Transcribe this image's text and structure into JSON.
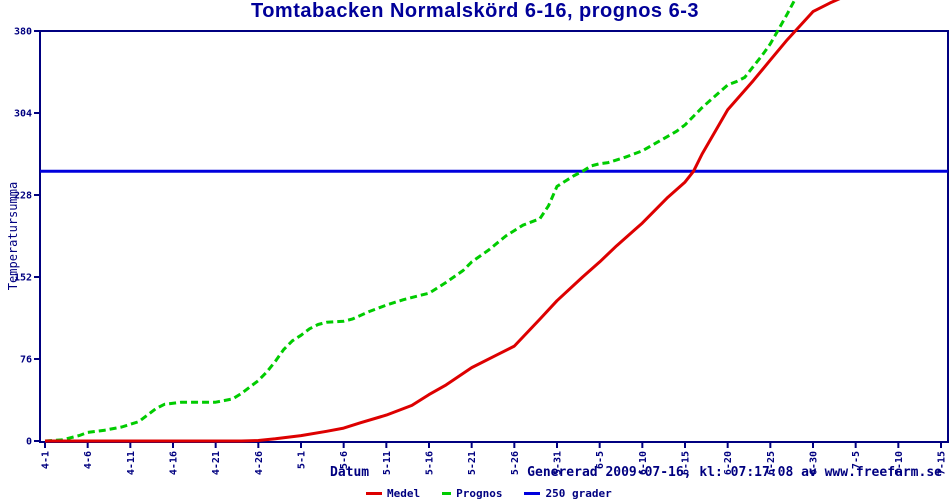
{
  "title": "Tomtabacken Normalskörd 6-16, prognos 6-3",
  "footer": {
    "generated": "Genererad 2009-07-16, kl: 07:17:08 av www.freefarm.se"
  },
  "axes": {
    "x_label": "Datum",
    "y_label": "Temperatursumma"
  },
  "legend": {
    "items": [
      {
        "label": "Medel",
        "color": "#dd0000",
        "swatch_w": 16
      },
      {
        "label": "Prognos",
        "color": "#00cc00",
        "swatch_w": 9
      },
      {
        "label": "250 grader",
        "color": "#0000dd",
        "swatch_w": 16
      }
    ]
  },
  "colors": {
    "text_navy": "#000080",
    "medel_red": "#dd0000",
    "prognos_green": "#00cc00",
    "ref_blue": "#0000dd"
  },
  "chart_data": {
    "type": "line",
    "title": "Tomtabacken Normalskörd 6-16, prognos 6-3",
    "xlabel": "Datum",
    "ylabel": "Temperatursumma",
    "ylim": [
      0,
      380
    ],
    "y_ticks": [
      0,
      76,
      152,
      228,
      304,
      380
    ],
    "x_tick_labels": [
      "4-1",
      "4-6",
      "4-11",
      "4-16",
      "4-21",
      "4-26",
      "5-1",
      "5-6",
      "5-11",
      "5-16",
      "5-21",
      "5-26",
      "5-31",
      "6-5",
      "6-10",
      "6-15",
      "6-20",
      "6-25",
      "6-30",
      "7-5",
      "7-10",
      "7-15"
    ],
    "x_tick_days": [
      0,
      5,
      10,
      15,
      20,
      25,
      30,
      35,
      40,
      45,
      50,
      55,
      60,
      65,
      70,
      75,
      80,
      85,
      90,
      95,
      100,
      105
    ],
    "x_unit": "month-day, one tick every 5 days from 4-1 to 7-15",
    "grid": false,
    "legend_position": "bottom-center",
    "ref_line": {
      "name": "250 grader",
      "value": 250,
      "color": "#0000dd",
      "style": "solid"
    },
    "series": [
      {
        "name": "Medel",
        "color": "#dd0000",
        "style": "solid",
        "points": [
          [
            0,
            0
          ],
          [
            6,
            0
          ],
          [
            12,
            0
          ],
          [
            18,
            0
          ],
          [
            23,
            0
          ],
          [
            25,
            0.5
          ],
          [
            27,
            2
          ],
          [
            30,
            5
          ],
          [
            33,
            9
          ],
          [
            35,
            12
          ],
          [
            37,
            17
          ],
          [
            40,
            24
          ],
          [
            43,
            33
          ],
          [
            45,
            43
          ],
          [
            47,
            52
          ],
          [
            50,
            68
          ],
          [
            53,
            80
          ],
          [
            55,
            88
          ],
          [
            58,
            113
          ],
          [
            60,
            130
          ],
          [
            63,
            152
          ],
          [
            65,
            166
          ],
          [
            67,
            181
          ],
          [
            70,
            202
          ],
          [
            73,
            226
          ],
          [
            75,
            240
          ],
          [
            76,
            250
          ],
          [
            77,
            266
          ],
          [
            80,
            307
          ],
          [
            83,
            334
          ],
          [
            85,
            353
          ],
          [
            87,
            372
          ],
          [
            90,
            398
          ],
          [
            92,
            406
          ],
          [
            94,
            413
          ]
        ]
      },
      {
        "name": "Prognos",
        "color": "#00cc00",
        "style": "dashed",
        "points": [
          [
            0,
            0
          ],
          [
            2,
            1
          ],
          [
            4,
            5
          ],
          [
            5,
            8
          ],
          [
            7,
            10
          ],
          [
            9,
            13
          ],
          [
            11,
            18
          ],
          [
            12,
            24
          ],
          [
            13,
            30
          ],
          [
            14,
            34
          ],
          [
            16,
            36
          ],
          [
            18,
            36
          ],
          [
            20,
            36
          ],
          [
            22,
            39
          ],
          [
            23,
            44
          ],
          [
            25,
            56
          ],
          [
            26,
            64
          ],
          [
            27,
            74
          ],
          [
            28,
            85
          ],
          [
            29,
            93
          ],
          [
            30,
            98
          ],
          [
            31,
            104
          ],
          [
            32,
            108
          ],
          [
            33,
            110
          ],
          [
            35,
            111
          ],
          [
            36,
            113
          ],
          [
            38,
            120
          ],
          [
            40,
            126
          ],
          [
            42,
            131
          ],
          [
            44,
            135
          ],
          [
            45,
            137
          ],
          [
            47,
            147
          ],
          [
            49,
            158
          ],
          [
            50,
            166
          ],
          [
            52,
            177
          ],
          [
            54,
            190
          ],
          [
            55,
            195
          ],
          [
            56,
            200
          ],
          [
            58,
            206
          ],
          [
            59,
            218
          ],
          [
            60,
            236
          ],
          [
            62,
            246
          ],
          [
            63,
            250
          ],
          [
            64,
            255
          ],
          [
            65,
            257
          ],
          [
            66,
            258
          ],
          [
            68,
            263
          ],
          [
            70,
            269
          ],
          [
            72,
            278
          ],
          [
            74,
            287
          ],
          [
            75,
            293
          ],
          [
            77,
            309
          ],
          [
            79,
            323
          ],
          [
            80,
            330
          ],
          [
            81,
            333
          ],
          [
            82,
            337
          ],
          [
            84,
            357
          ],
          [
            85,
            368
          ],
          [
            86,
            382
          ],
          [
            87,
            396
          ],
          [
            88,
            411
          ]
        ]
      }
    ]
  }
}
